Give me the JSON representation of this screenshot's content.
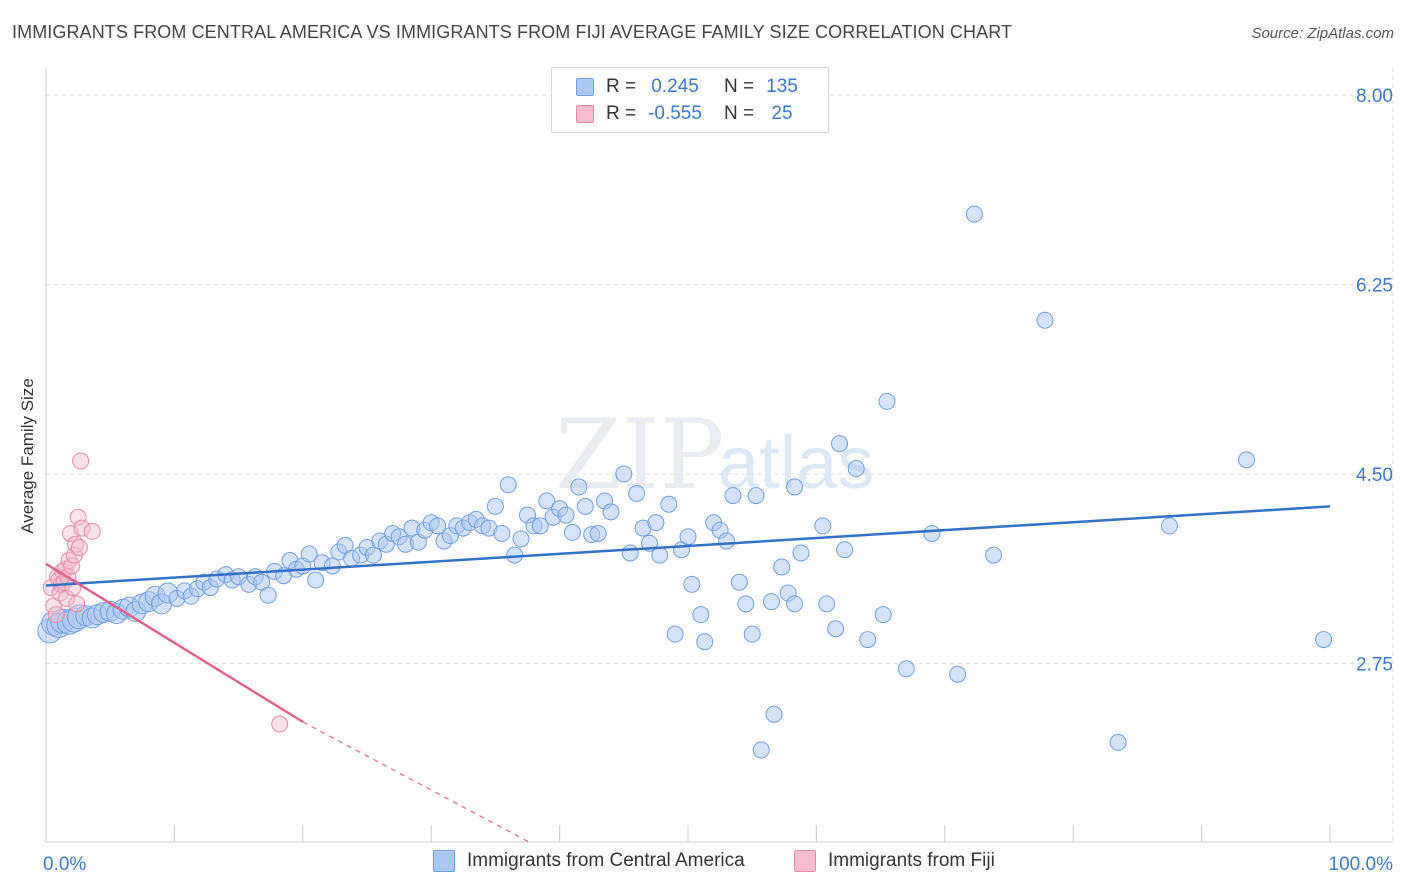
{
  "header": {
    "title": "IMMIGRANTS FROM CENTRAL AMERICA VS IMMIGRANTS FROM FIJI AVERAGE FAMILY SIZE CORRELATION CHART",
    "source": "Source: ZipAtlas.com"
  },
  "watermark": {
    "zip": "ZIP",
    "atlas": "atlas"
  },
  "legend": {
    "rows": [
      {
        "r_label": "R =",
        "r_value": "0.245",
        "n_label": "N =",
        "n_value": "135",
        "color": "#a9c8f2",
        "border": "#6f9fe0"
      },
      {
        "r_label": "R =",
        "r_value": "-0.555",
        "n_label": "N =",
        "n_value": "25",
        "color": "#f7bcd0",
        "border": "#e88aa8"
      }
    ]
  },
  "bottom_legend": {
    "items": [
      {
        "label": "Immigrants from Central America",
        "color": "#a9c8f2",
        "border": "#6f9fe0"
      },
      {
        "label": "Immigrants from Fiji",
        "color": "#f7bcd0",
        "border": "#e88aa8"
      }
    ]
  },
  "chart_data": {
    "type": "scatter",
    "title": "IMMIGRANTS FROM CENTRAL AMERICA VS IMMIGRANTS FROM FIJI AVERAGE FAMILY SIZE CORRELATION CHART",
    "xlabel": "",
    "ylabel": "Average Family Size",
    "xlim": [
      0,
      100
    ],
    "ylim": [
      1.1,
      8.25
    ],
    "x_tick_labels": [
      "0.0%",
      "100.0%"
    ],
    "y_ticks": [
      2.75,
      4.5,
      6.25,
      8.0
    ],
    "y_tick_labels": [
      "2.75",
      "4.50",
      "6.25",
      "8.00"
    ],
    "grid": true,
    "colors": {
      "central_america": "#6f9fe0",
      "central_america_line": "#2f72c9",
      "fiji": "#e88aa8",
      "fiji_line": "#e0648f",
      "axis_text": "#3a78c9"
    },
    "series": [
      {
        "name": "Immigrants from Central America",
        "trend": {
          "x": [
            0,
            100
          ],
          "y": [
            3.47,
            4.2
          ]
        },
        "points": [
          [
            0.3,
            3.05
          ],
          [
            0.6,
            3.12
          ],
          [
            1.0,
            3.1
          ],
          [
            1.3,
            3.14
          ],
          [
            1.8,
            3.13
          ],
          [
            2.2,
            3.15
          ],
          [
            2.6,
            3.18
          ],
          [
            3.1,
            3.19
          ],
          [
            3.6,
            3.17
          ],
          [
            4.0,
            3.2
          ],
          [
            4.5,
            3.22
          ],
          [
            5.0,
            3.23
          ],
          [
            5.5,
            3.21
          ],
          [
            6.0,
            3.25
          ],
          [
            6.5,
            3.27
          ],
          [
            7.0,
            3.23
          ],
          [
            7.5,
            3.3
          ],
          [
            8.0,
            3.32
          ],
          [
            8.5,
            3.37
          ],
          [
            9.0,
            3.3
          ],
          [
            9.5,
            3.4
          ],
          [
            10.2,
            3.35
          ],
          [
            10.8,
            3.42
          ],
          [
            11.3,
            3.37
          ],
          [
            11.8,
            3.44
          ],
          [
            12.3,
            3.5
          ],
          [
            12.8,
            3.45
          ],
          [
            13.3,
            3.53
          ],
          [
            14.0,
            3.57
          ],
          [
            14.5,
            3.52
          ],
          [
            15.0,
            3.55
          ],
          [
            15.8,
            3.48
          ],
          [
            16.3,
            3.55
          ],
          [
            16.8,
            3.5
          ],
          [
            17.3,
            3.38
          ],
          [
            17.8,
            3.6
          ],
          [
            18.5,
            3.56
          ],
          [
            19.0,
            3.7
          ],
          [
            19.5,
            3.62
          ],
          [
            20.0,
            3.65
          ],
          [
            20.5,
            3.76
          ],
          [
            21.0,
            3.52
          ],
          [
            21.5,
            3.68
          ],
          [
            22.3,
            3.65
          ],
          [
            22.8,
            3.78
          ],
          [
            23.3,
            3.84
          ],
          [
            23.8,
            3.72
          ],
          [
            24.5,
            3.75
          ],
          [
            25.0,
            3.82
          ],
          [
            25.5,
            3.75
          ],
          [
            26.0,
            3.88
          ],
          [
            26.5,
            3.85
          ],
          [
            27.0,
            3.95
          ],
          [
            27.5,
            3.92
          ],
          [
            28.0,
            3.85
          ],
          [
            28.5,
            4.0
          ],
          [
            29.0,
            3.87
          ],
          [
            29.5,
            3.98
          ],
          [
            30.0,
            4.05
          ],
          [
            30.5,
            4.02
          ],
          [
            31.0,
            3.88
          ],
          [
            31.5,
            3.93
          ],
          [
            32.0,
            4.02
          ],
          [
            32.5,
            4.0
          ],
          [
            33.0,
            4.05
          ],
          [
            33.5,
            4.08
          ],
          [
            34.0,
            4.02
          ],
          [
            34.5,
            4.0
          ],
          [
            35.0,
            4.2
          ],
          [
            35.5,
            3.95
          ],
          [
            36.0,
            4.4
          ],
          [
            36.5,
            3.75
          ],
          [
            37.0,
            3.9
          ],
          [
            37.5,
            4.12
          ],
          [
            38.0,
            4.02
          ],
          [
            38.5,
            4.02
          ],
          [
            39.0,
            4.25
          ],
          [
            39.5,
            4.1
          ],
          [
            40.0,
            4.18
          ],
          [
            40.5,
            4.12
          ],
          [
            41.0,
            3.96
          ],
          [
            41.5,
            4.38
          ],
          [
            42.0,
            4.2
          ],
          [
            42.5,
            3.94
          ],
          [
            43.0,
            3.95
          ],
          [
            43.5,
            4.25
          ],
          [
            44.0,
            4.15
          ],
          [
            45.0,
            4.5
          ],
          [
            45.5,
            3.77
          ],
          [
            46.0,
            4.32
          ],
          [
            46.5,
            4.0
          ],
          [
            47.0,
            3.86
          ],
          [
            47.5,
            4.05
          ],
          [
            47.8,
            3.75
          ],
          [
            48.5,
            4.22
          ],
          [
            49.0,
            3.02
          ],
          [
            49.5,
            3.8
          ],
          [
            50.0,
            3.92
          ],
          [
            50.3,
            3.48
          ],
          [
            51.0,
            3.2
          ],
          [
            51.3,
            2.95
          ],
          [
            52.0,
            4.05
          ],
          [
            52.5,
            3.98
          ],
          [
            53.0,
            3.88
          ],
          [
            53.5,
            4.3
          ],
          [
            54.0,
            3.5
          ],
          [
            54.5,
            3.3
          ],
          [
            55.0,
            3.02
          ],
          [
            55.3,
            4.3
          ],
          [
            55.7,
            1.95
          ],
          [
            56.5,
            3.32
          ],
          [
            56.7,
            2.28
          ],
          [
            57.3,
            3.64
          ],
          [
            57.8,
            3.4
          ],
          [
            58.3,
            3.3
          ],
          [
            58.8,
            3.77
          ],
          [
            58.3,
            4.38
          ],
          [
            60.5,
            4.02
          ],
          [
            60.8,
            3.3
          ],
          [
            61.5,
            3.07
          ],
          [
            61.8,
            4.78
          ],
          [
            62.2,
            3.8
          ],
          [
            63.1,
            4.55
          ],
          [
            64.0,
            2.97
          ],
          [
            65.5,
            5.17
          ],
          [
            65.2,
            3.2
          ],
          [
            67.0,
            2.7
          ],
          [
            69.0,
            3.95
          ],
          [
            71.0,
            2.65
          ],
          [
            72.3,
            6.9
          ],
          [
            73.8,
            3.75
          ],
          [
            77.8,
            5.92
          ],
          [
            83.5,
            2.02
          ],
          [
            87.5,
            4.02
          ],
          [
            93.5,
            4.63
          ],
          [
            99.5,
            2.97
          ]
        ]
      },
      {
        "name": "Immigrants from Fiji",
        "trend": {
          "x": [
            0,
            20
          ],
          "y": [
            3.67,
            2.21
          ]
        },
        "trend_dashed": {
          "x": [
            20,
            40
          ],
          "y": [
            2.21,
            0.95
          ]
        },
        "points": [
          [
            0.4,
            3.45
          ],
          [
            0.6,
            3.28
          ],
          [
            0.8,
            3.2
          ],
          [
            0.9,
            3.55
          ],
          [
            1.0,
            3.52
          ],
          [
            1.1,
            3.4
          ],
          [
            1.2,
            3.48
          ],
          [
            1.3,
            3.6
          ],
          [
            1.4,
            3.5
          ],
          [
            1.5,
            3.62
          ],
          [
            1.6,
            3.35
          ],
          [
            1.7,
            3.55
          ],
          [
            1.8,
            3.7
          ],
          [
            1.9,
            3.95
          ],
          [
            2.0,
            3.65
          ],
          [
            2.1,
            3.45
          ],
          [
            2.2,
            3.75
          ],
          [
            2.3,
            3.85
          ],
          [
            2.4,
            3.3
          ],
          [
            2.5,
            4.1
          ],
          [
            2.6,
            3.82
          ],
          [
            2.7,
            4.62
          ],
          [
            2.8,
            4.0
          ],
          [
            3.6,
            3.97
          ],
          [
            18.2,
            2.19
          ]
        ]
      }
    ]
  }
}
